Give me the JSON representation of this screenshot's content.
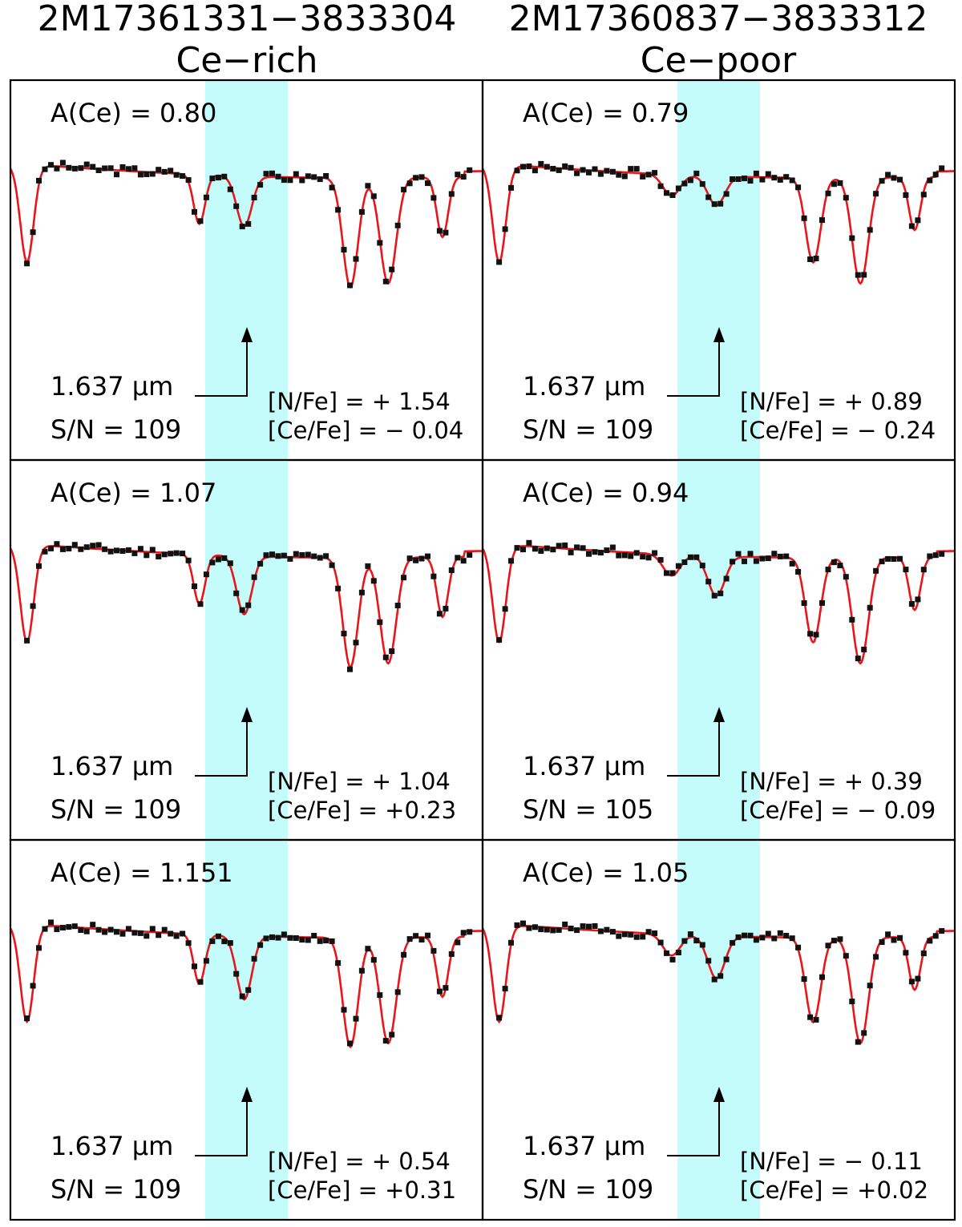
{
  "columns": [
    {
      "star_id": "2M17361331−3833304",
      "group": "Ce−rich"
    },
    {
      "star_id": "2M17360837−3833312",
      "group": "Ce−poor"
    }
  ],
  "line_label": "1.637 μm",
  "colors": {
    "fit": "#e8151b",
    "observed": "#111111",
    "highlight": "#c4fbfb",
    "frame": "#000000"
  },
  "panels": [
    {
      "row": 0,
      "col": 0,
      "ace": "A(Ce)  =  0.80",
      "sn": "S/N  =  109",
      "nfe": "[N/Fe] =  + 1.54",
      "cefe": "[Ce/Fe] = − 0.04",
      "profile": "rich",
      "ce_depth": 0.95,
      "scatter_seed": 3
    },
    {
      "row": 0,
      "col": 1,
      "ace": "A(Ce)  =  0.79",
      "sn": "S/N  =  109",
      "nfe": "[N/Fe] =  + 0.89",
      "cefe": "[Ce/Fe] = − 0.24",
      "profile": "poor",
      "ce_depth": 0.55,
      "scatter_seed": 7
    },
    {
      "row": 1,
      "col": 0,
      "ace": "A(Ce)  =  1.07",
      "sn": "S/N  =  109",
      "nfe": "[N/Fe] =  + 1.04",
      "cefe": "[Ce/Fe] = +0.23",
      "profile": "rich",
      "ce_depth": 1.1,
      "scatter_seed": 11
    },
    {
      "row": 1,
      "col": 1,
      "ace": "A(Ce)  =  0.94",
      "sn": "S/N  =  105",
      "nfe": "[N/Fe] =  + 0.39",
      "cefe": "[Ce/Fe] = − 0.09",
      "profile": "poor",
      "ce_depth": 0.75,
      "scatter_seed": 13
    },
    {
      "row": 2,
      "col": 0,
      "ace": "A(Ce)  =  1.151",
      "sn": "S/N  =  109",
      "nfe": "[N/Fe] =  + 0.54",
      "cefe": "[Ce/Fe] = +0.31",
      "profile": "rich",
      "ce_depth": 1.2,
      "scatter_seed": 17
    },
    {
      "row": 2,
      "col": 1,
      "ace": "A(Ce)  =  1.05",
      "sn": "S/N  =  109",
      "nfe": "[N/Fe] = − 0.11",
      "cefe": "[Ce/Fe] = +0.02",
      "profile": "poor",
      "ce_depth": 0.8,
      "scatter_seed": 19
    }
  ],
  "chart_data": {
    "type": "scatter",
    "title": "",
    "xlabel": "",
    "ylabel": "",
    "grid": false,
    "series": [
      {
        "name": "",
        "kind": "observed spectrum (points)"
      },
      {
        "name": "",
        "kind": "synthetic fit (line)"
      }
    ],
    "annotations": [
      "1.637 μm"
    ]
  }
}
